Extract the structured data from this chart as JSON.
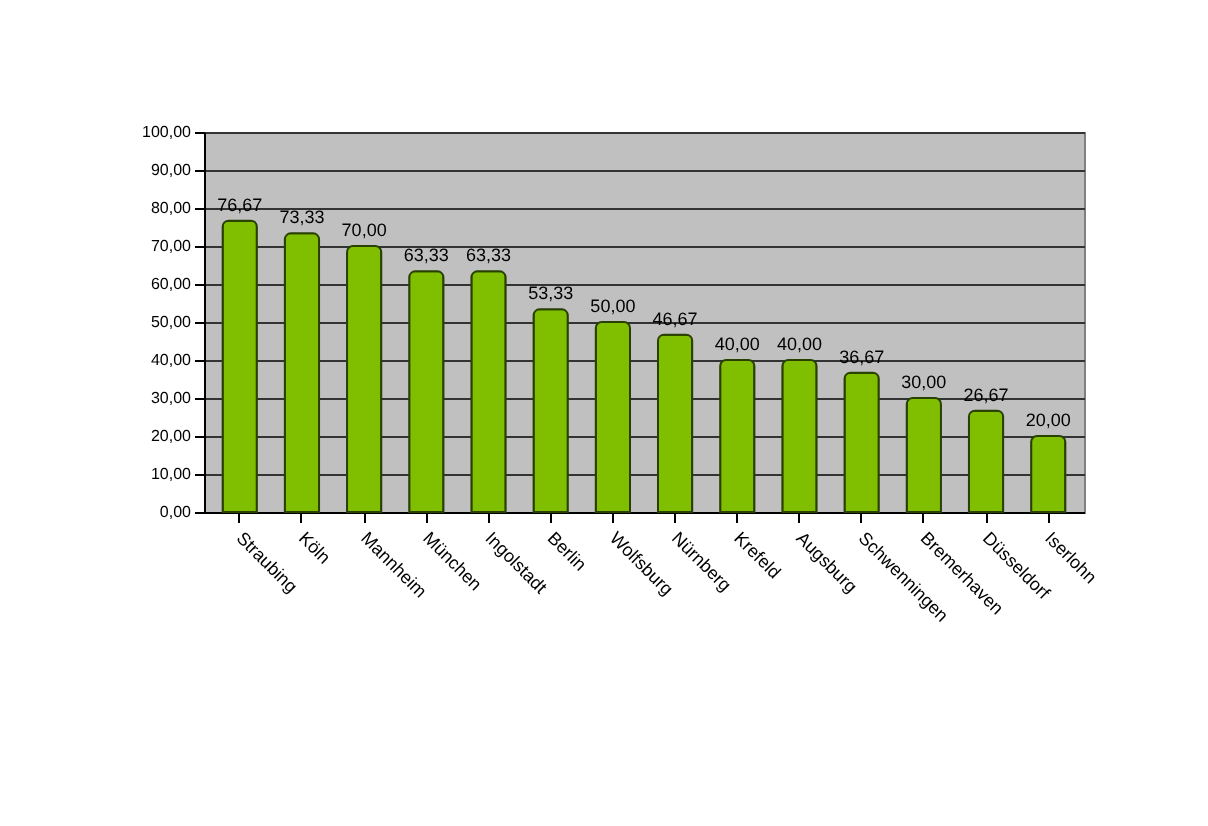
{
  "chart_data": {
    "type": "bar",
    "categories": [
      "Straubing",
      "Köln",
      "Mannheim",
      "München",
      "Ingolstadt",
      "Berlin",
      "Wolfsburg",
      "Nürnberg",
      "Krefeld",
      "Augsburg",
      "Schwenningen",
      "Bremerhaven",
      "Düsseldorf",
      "Iserlohn"
    ],
    "values": [
      76.67,
      73.33,
      70.0,
      63.33,
      63.33,
      53.33,
      50.0,
      46.67,
      40.0,
      40.0,
      36.67,
      30.0,
      26.67,
      20.0
    ],
    "value_labels": [
      "76,67",
      "73,33",
      "70,00",
      "63,33",
      "63,33",
      "53,33",
      "50,00",
      "46,67",
      "40,00",
      "40,00",
      "36,67",
      "30,00",
      "26,67",
      "20,00"
    ],
    "color": "#80bf00",
    "ylim": [
      0,
      100
    ],
    "yticks": [
      {
        "value": 0,
        "label": "0,00"
      },
      {
        "value": 10,
        "label": "10,00"
      },
      {
        "value": 20,
        "label": "20,00"
      },
      {
        "value": 30,
        "label": "30,00"
      },
      {
        "value": 40,
        "label": "40,00"
      },
      {
        "value": 50,
        "label": "50,00"
      },
      {
        "value": 60,
        "label": "60,00"
      },
      {
        "value": 70,
        "label": "70,00"
      },
      {
        "value": 80,
        "label": "80,00"
      },
      {
        "value": 90,
        "label": "90,00"
      },
      {
        "value": 100,
        "label": "100,00"
      }
    ],
    "grid": "y"
  }
}
